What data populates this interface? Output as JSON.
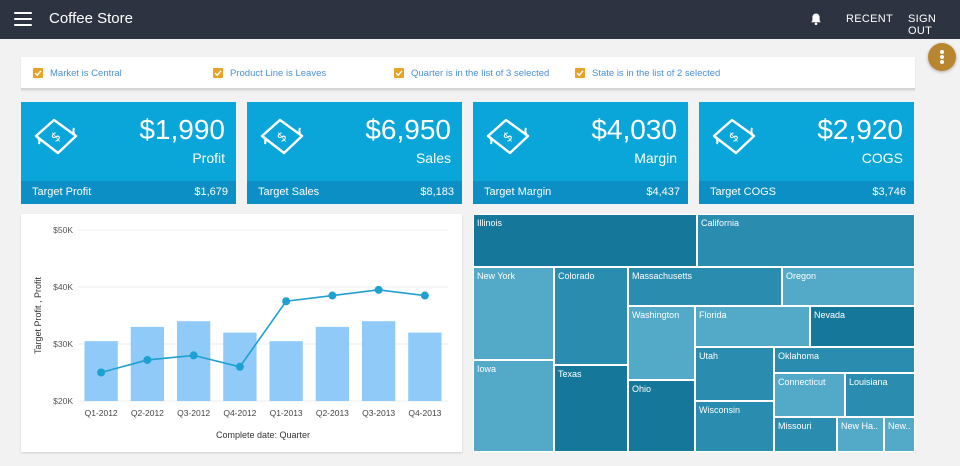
{
  "app": {
    "title": "Coffee Store"
  },
  "nav": {
    "recent": "RECENT",
    "sign_out": "SIGN OUT"
  },
  "filters": [
    "Market is Central",
    "Product Line is Leaves",
    "Quarter is in the list of 3 selected",
    "State is in the list of 2 selected"
  ],
  "kpis": [
    {
      "value": "$1,990",
      "label": "Profit",
      "target_label": "Target Profit",
      "target_value": "$1,679"
    },
    {
      "value": "$6,950",
      "label": "Sales",
      "target_label": "Target Sales",
      "target_value": "$8,183"
    },
    {
      "value": "$4,030",
      "label": "Margin",
      "target_label": "Target Margin",
      "target_value": "$4,437"
    },
    {
      "value": "$2,920",
      "label": "COGS",
      "target_label": "Target COGS",
      "target_value": "$3,746"
    }
  ],
  "colors": {
    "topbar": "#2d3340",
    "kpi": "#0aa6d9",
    "kpi_footer": "#0b8fc4",
    "bar": "#90caf9",
    "line": "#1ea0d0",
    "fab": "#b9852f",
    "filter_check": "#e9a126"
  },
  "chart_data": {
    "type": "bar",
    "categories": [
      "Q1-2012",
      "Q2-2012",
      "Q3-2012",
      "Q4-2012",
      "Q1-2013",
      "Q2-2013",
      "Q3-2013",
      "Q4-2013"
    ],
    "series": [
      {
        "type": "bar",
        "values": [
          30500,
          33000,
          34000,
          32000,
          30500,
          33000,
          34000,
          32000
        ]
      },
      {
        "type": "line",
        "values": [
          25000,
          27200,
          28000,
          26000,
          37500,
          38500,
          39500,
          38500
        ]
      }
    ],
    "ylabel": "Target Profit , Profit",
    "xlabel": "Complete date: Quarter",
    "yticks": [
      "$20K",
      "$30K",
      "$40K",
      "$50K"
    ],
    "ylim": [
      20000,
      50000
    ],
    "grid": true
  },
  "treemap": [
    {
      "name": "Illinois",
      "value": 20,
      "shade": "#15789a"
    },
    {
      "name": "California",
      "value": 20,
      "shade": "#2a8caf"
    },
    {
      "name": "New York",
      "value": 17,
      "shade": "#52a9c8"
    },
    {
      "name": "Colorado",
      "value": 15,
      "shade": "#2a8caf"
    },
    {
      "name": "Massachusetts",
      "value": 12,
      "shade": "#2a8caf"
    },
    {
      "name": "Oregon",
      "value": 12,
      "shade": "#52a9c8"
    },
    {
      "name": "Iowa",
      "value": 13,
      "shade": "#52a9c8"
    },
    {
      "name": "Texas",
      "value": 13,
      "shade": "#15789a"
    },
    {
      "name": "Washington",
      "value": 9,
      "shade": "#52a9c8"
    },
    {
      "name": "Florida",
      "value": 8,
      "shade": "#52a9c8"
    },
    {
      "name": "Nevada",
      "value": 7,
      "shade": "#15789a"
    },
    {
      "name": "Ohio",
      "value": 8,
      "shade": "#15789a"
    },
    {
      "name": "Utah",
      "value": 6,
      "shade": "#2a8caf"
    },
    {
      "name": "Oklahoma",
      "value": 7,
      "shade": "#2a8caf"
    },
    {
      "name": "Connecticut",
      "value": 5,
      "shade": "#52a9c8"
    },
    {
      "name": "Louisiana",
      "value": 5,
      "shade": "#2a8caf"
    },
    {
      "name": "Wisconsin",
      "value": 6,
      "shade": "#2a8caf"
    },
    {
      "name": "Missouri",
      "value": 4,
      "shade": "#2a8caf"
    },
    {
      "name": "New Ha..",
      "value": 3,
      "shade": "#52a9c8"
    },
    {
      "name": "New..",
      "value": 2,
      "shade": "#52a9c8"
    }
  ]
}
